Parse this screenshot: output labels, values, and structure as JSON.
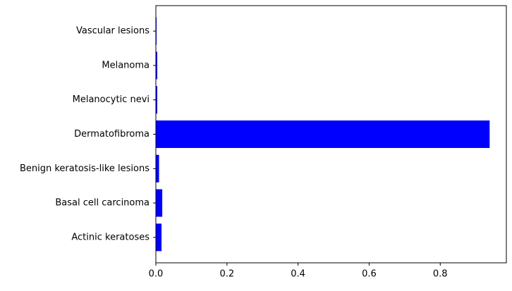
{
  "chart_data": {
    "type": "barh",
    "categories": [
      "Actinic keratoses",
      "Basal cell carcinoma",
      "Benign keratosis-like lesions",
      "Dermatofibroma",
      "Melanocytic nevi",
      "Melanoma",
      "Vascular lesions"
    ],
    "values": [
      0.016,
      0.018,
      0.009,
      0.939,
      0.004,
      0.004,
      0.002
    ],
    "color": "#0000ff",
    "xlim": [
      0,
      0.986
    ],
    "xticks": [
      {
        "value": 0,
        "label": "0.0"
      },
      0.2,
      0.4,
      0.6,
      0.8
    ]
  }
}
